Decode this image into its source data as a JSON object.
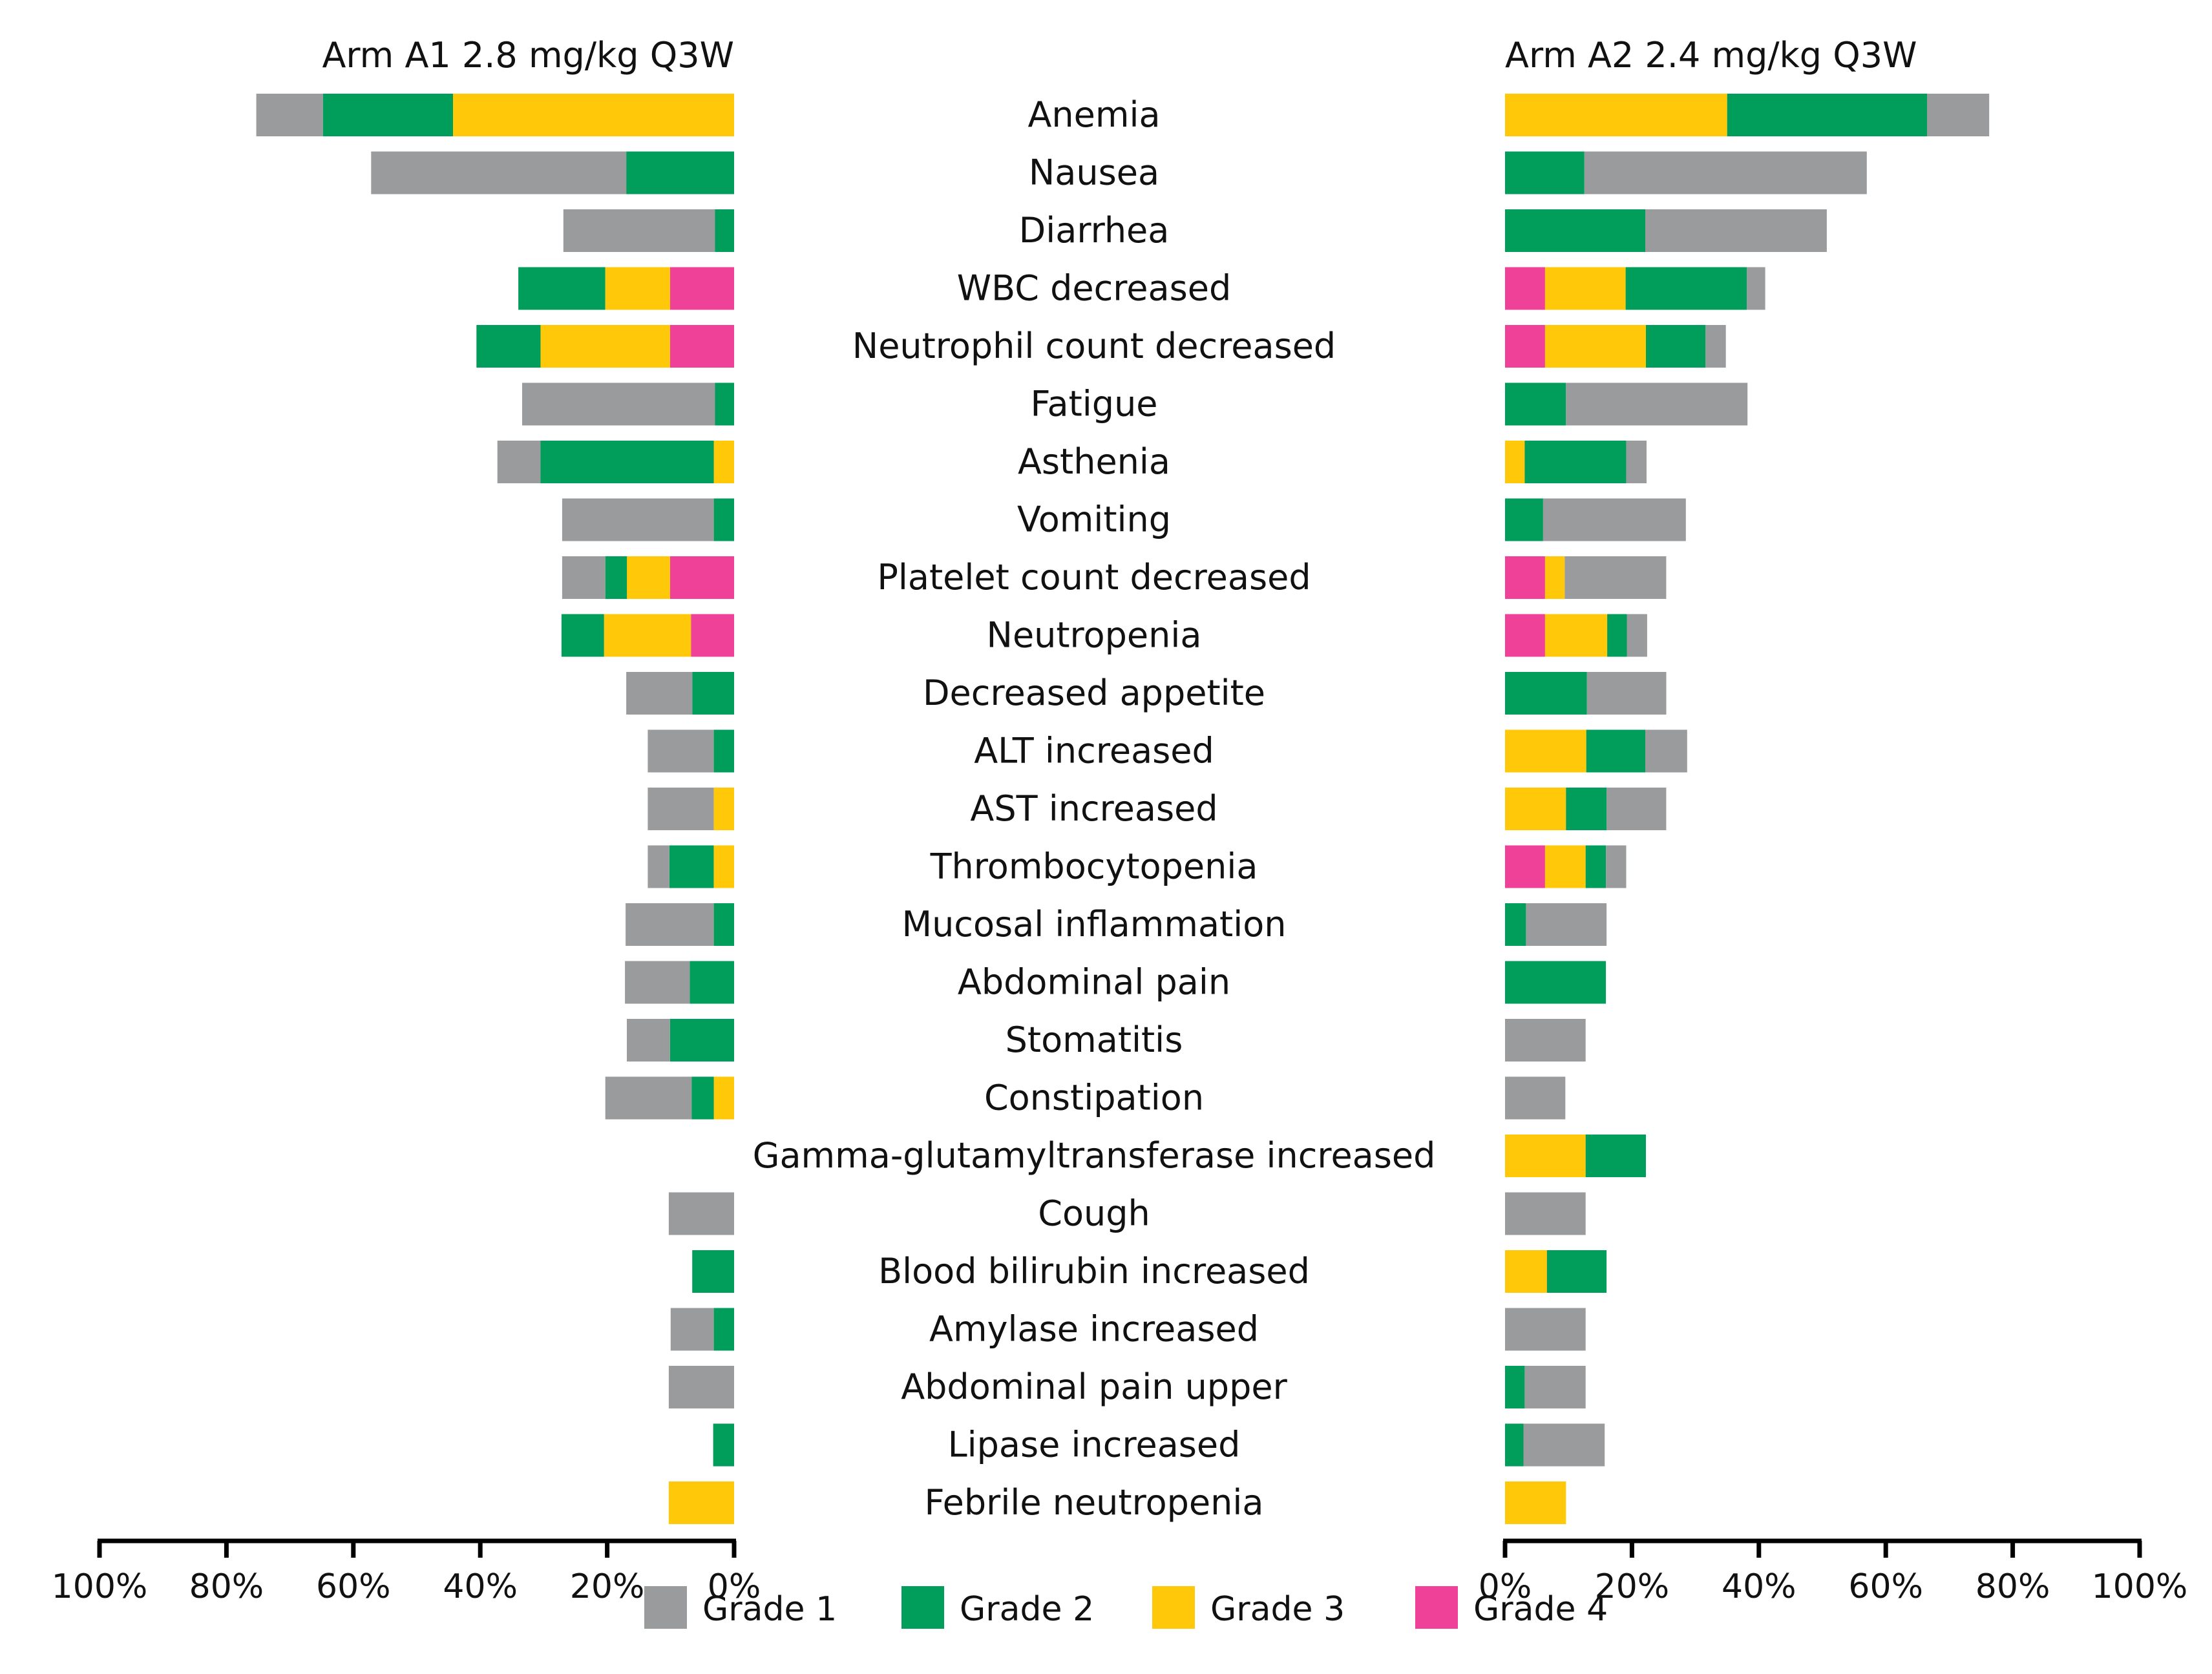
{
  "chart_data": {
    "type": "bar",
    "orientation": "horizontal",
    "layout": "back-to-back",
    "categories": [
      "Anemia",
      "Nausea",
      "Diarrhea",
      "WBC decreased",
      "Neutrophil count decreased",
      "Fatigue",
      "Asthenia",
      "Vomiting",
      "Platelet count decreased",
      "Neutropenia",
      "Decreased appetite",
      "ALT increased",
      "AST increased",
      "Thrombocytopenia",
      "Mucosal inflammation",
      "Abdominal pain",
      "Stomatitis",
      "Constipation",
      "Gamma-glutamyltransferase increased",
      "Cough",
      "Blood bilirubin increased",
      "Amylase increased",
      "Abdominal pain upper",
      "Lipase increased",
      "Febrile neutropenia"
    ],
    "grades": [
      {
        "name": "Grade 1",
        "color": "#9a9b9d"
      },
      {
        "name": "Grade 2",
        "color": "#009e5a"
      },
      {
        "name": "Grade 3",
        "color": "#ffc90a"
      },
      {
        "name": "Grade 4",
        "color": "#ee4197"
      }
    ],
    "stack_order_from_axis": [
      "Grade 4",
      "Grade 3",
      "Grade 2",
      "Grade 1"
    ],
    "xlim": [
      0,
      100
    ],
    "x_ticks_left": [
      "100%",
      "80%",
      "60%",
      "40%",
      "20%",
      "0%"
    ],
    "x_ticks_right": [
      "0%",
      "20%",
      "40%",
      "60%",
      "80%",
      "100%"
    ],
    "panels": [
      {
        "title": "Arm A1 2.8 mg/kg Q3W",
        "side": "left",
        "series": [
          {
            "name": "Grade 1",
            "values": [
              10.5,
              40.2,
              23.9,
              0,
              0,
              30.4,
              6.8,
              23.9,
              6.8,
              0,
              10.4,
              10.4,
              10.4,
              3.4,
              13.9,
              10.2,
              6.8,
              13.6,
              0,
              10.3,
              0,
              6.8,
              10.3,
              0,
              0
            ]
          },
          {
            "name": "Grade 2",
            "values": [
              20.5,
              17.0,
              3.0,
              13.7,
              10.1,
              3.0,
              27.3,
              3.2,
              3.4,
              6.7,
              6.6,
              3.2,
              0,
              7.0,
              3.2,
              7.0,
              10.1,
              3.5,
              0,
              0,
              6.6,
              3.2,
              0,
              3.3,
              0
            ]
          },
          {
            "name": "Grade 3",
            "values": [
              44.3,
              0,
              0,
              10.2,
              20.4,
              0,
              3.2,
              0,
              6.8,
              13.7,
              0,
              0,
              3.2,
              3.2,
              0,
              0,
              0,
              3.2,
              0,
              0,
              0,
              0,
              0,
              0,
              10.3
            ]
          },
          {
            "name": "Grade 4",
            "values": [
              0,
              0,
              0,
              10.1,
              10.1,
              0,
              0,
              0,
              10.1,
              6.8,
              0,
              0,
              0,
              0,
              0,
              0,
              0,
              0,
              0,
              0,
              0,
              0,
              0,
              0,
              0
            ]
          }
        ]
      },
      {
        "title": "Arm A2 2.4 mg/kg Q3W",
        "side": "right",
        "series": [
          {
            "name": "Grade 1",
            "values": [
              9.8,
              44.5,
              28.6,
              2.9,
              3.2,
              28.6,
              3.2,
              22.5,
              16.0,
              3.2,
              12.5,
              6.6,
              9.4,
              3.2,
              12.7,
              0,
              12.7,
              9.5,
              0,
              12.7,
              0,
              12.7,
              9.6,
              12.8,
              0
            ]
          },
          {
            "name": "Grade 2",
            "values": [
              31.5,
              12.5,
              22.1,
              19.1,
              9.4,
              9.6,
              16.0,
              6.0,
              0,
              3.1,
              12.9,
              9.3,
              6.4,
              3.2,
              3.3,
              15.9,
              0,
              0,
              9.5,
              0,
              9.4,
              0,
              3.1,
              2.9,
              0
            ]
          },
          {
            "name": "Grade 3",
            "values": [
              35.0,
              0,
              0,
              12.7,
              15.9,
              0,
              3.1,
              0,
              3.1,
              9.8,
              0,
              12.8,
              9.6,
              6.4,
              0,
              0,
              0,
              0,
              12.7,
              0,
              6.6,
              0,
              0,
              0,
              9.6
            ]
          },
          {
            "name": "Grade 4",
            "values": [
              0,
              0,
              0,
              6.3,
              6.3,
              0,
              0,
              0,
              6.3,
              6.3,
              0,
              0,
              0,
              6.3,
              0,
              0,
              0,
              0,
              0,
              0,
              0,
              0,
              0,
              0,
              0
            ]
          }
        ]
      }
    ],
    "legend": {
      "position": "bottom",
      "entries": [
        "Grade 1",
        "Grade 2",
        "Grade 3",
        "Grade 4"
      ]
    },
    "grid": false
  }
}
